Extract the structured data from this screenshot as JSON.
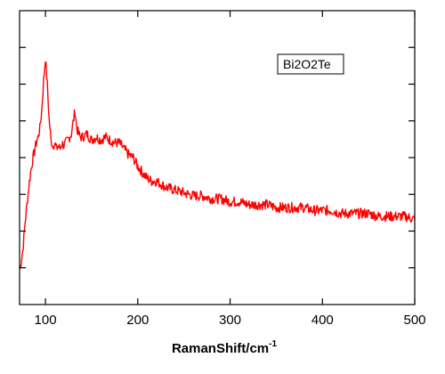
{
  "chart_data": {
    "type": "line",
    "title": "",
    "xlabel": "RamanShift/cm",
    "xlabel_superscript": "-1",
    "ylabel": "",
    "xlim": [
      72,
      500
    ],
    "xticks": [
      100,
      200,
      300,
      400,
      500
    ],
    "ylim": [
      0,
      1
    ],
    "ytick_labels_shown": false,
    "grid": false,
    "legend": {
      "placement": "top-right",
      "entries": [
        "Bi2O2Te"
      ]
    },
    "series": [
      {
        "name": "Bi2O2Te",
        "color": "#ff0000",
        "x": [
          72,
          74,
          76,
          78,
          80,
          82,
          84,
          86,
          88,
          90,
          92,
          94,
          96,
          98,
          100,
          102,
          104,
          106,
          108,
          110,
          112,
          114,
          116,
          118,
          120,
          122,
          124,
          126,
          128,
          130,
          132,
          134,
          136,
          138,
          140,
          145,
          150,
          155,
          160,
          165,
          170,
          175,
          180,
          185,
          190,
          195,
          200,
          205,
          210,
          215,
          220,
          230,
          240,
          250,
          260,
          270,
          280,
          290,
          300,
          310,
          320,
          330,
          340,
          350,
          360,
          370,
          380,
          390,
          400,
          410,
          420,
          430,
          440,
          450,
          460,
          470,
          480,
          490,
          500
        ],
        "y": [
          0.12,
          0.15,
          0.2,
          0.28,
          0.34,
          0.4,
          0.45,
          0.49,
          0.52,
          0.55,
          0.57,
          0.6,
          0.66,
          0.76,
          0.84,
          0.75,
          0.63,
          0.56,
          0.54,
          0.55,
          0.53,
          0.54,
          0.53,
          0.55,
          0.54,
          0.55,
          0.56,
          0.57,
          0.58,
          0.62,
          0.66,
          0.6,
          0.58,
          0.57,
          0.57,
          0.58,
          0.56,
          0.57,
          0.56,
          0.57,
          0.56,
          0.55,
          0.55,
          0.53,
          0.51,
          0.5,
          0.47,
          0.45,
          0.43,
          0.42,
          0.42,
          0.4,
          0.39,
          0.38,
          0.37,
          0.37,
          0.36,
          0.36,
          0.35,
          0.35,
          0.34,
          0.34,
          0.34,
          0.33,
          0.33,
          0.33,
          0.33,
          0.32,
          0.32,
          0.32,
          0.31,
          0.31,
          0.31,
          0.31,
          0.3,
          0.3,
          0.3,
          0.3,
          0.29
        ]
      }
    ]
  }
}
